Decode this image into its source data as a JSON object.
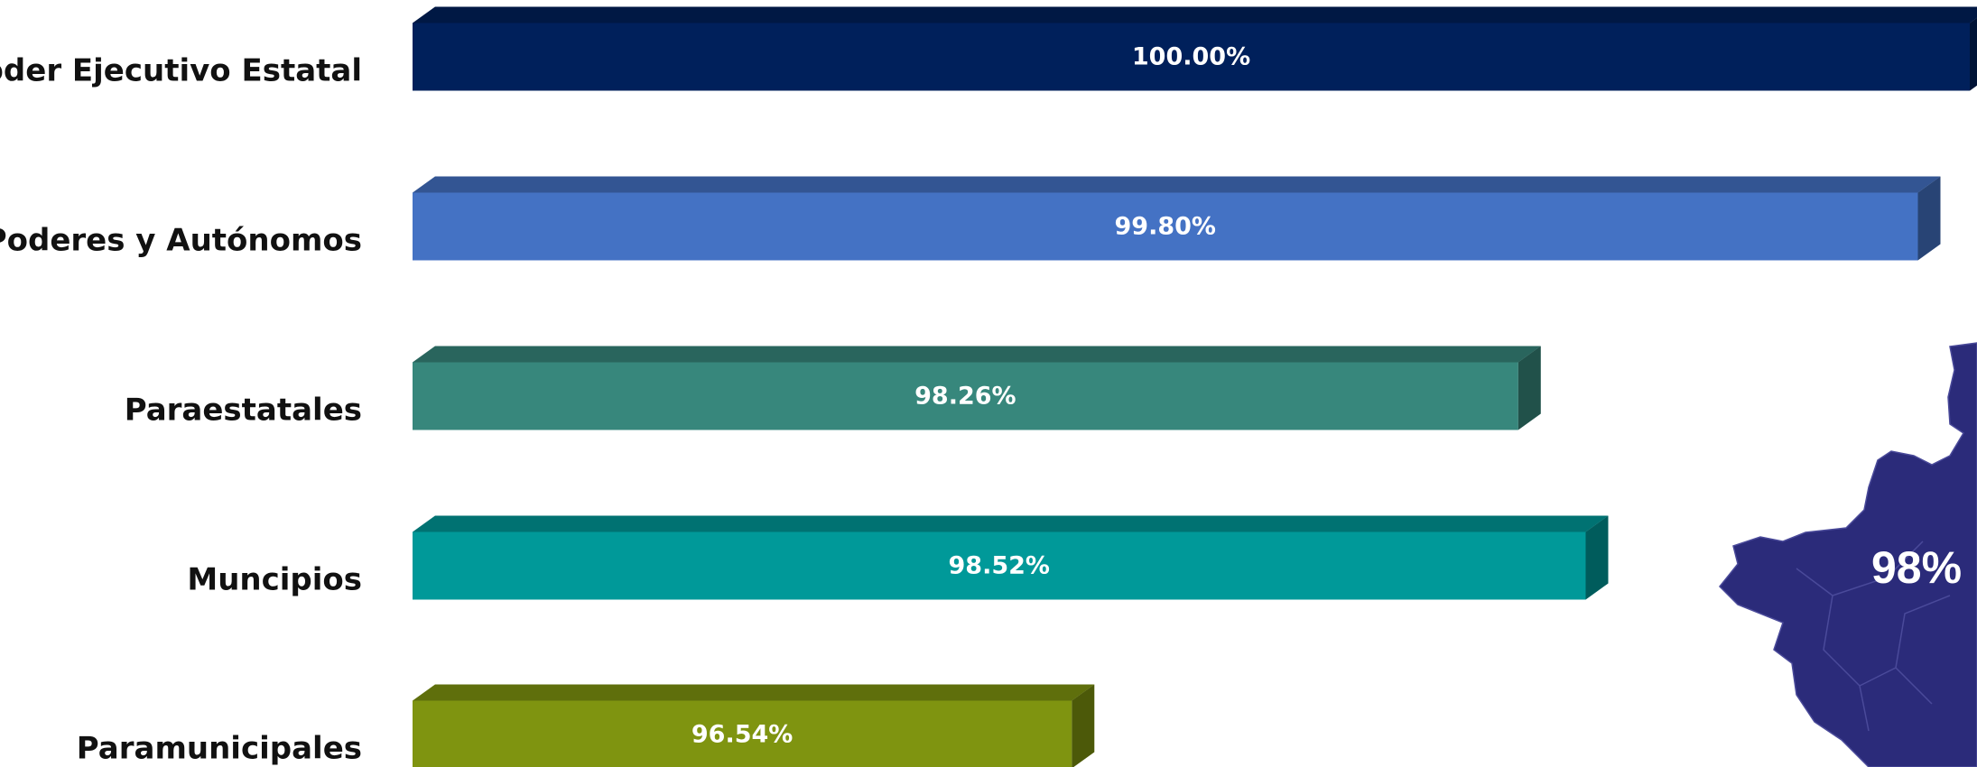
{
  "chart_data": {
    "type": "bar",
    "orientation": "horizontal",
    "categories": [
      "Poder Ejecutivo Estatal",
      "Poderes y Autónomos",
      "Paraestatales",
      "Muncipios",
      "Paramunicipales"
    ],
    "values": [
      100.0,
      99.8,
      98.26,
      98.52,
      96.54
    ],
    "value_labels": [
      "100.00%",
      "99.80%",
      "98.26%",
      "98.52%",
      "96.54%"
    ],
    "colors": [
      "#00205b",
      "#4472c4",
      "#37877c",
      "#009999",
      "#7f9410"
    ],
    "xlim": [
      94,
      100
    ],
    "annotation": "98%"
  }
}
